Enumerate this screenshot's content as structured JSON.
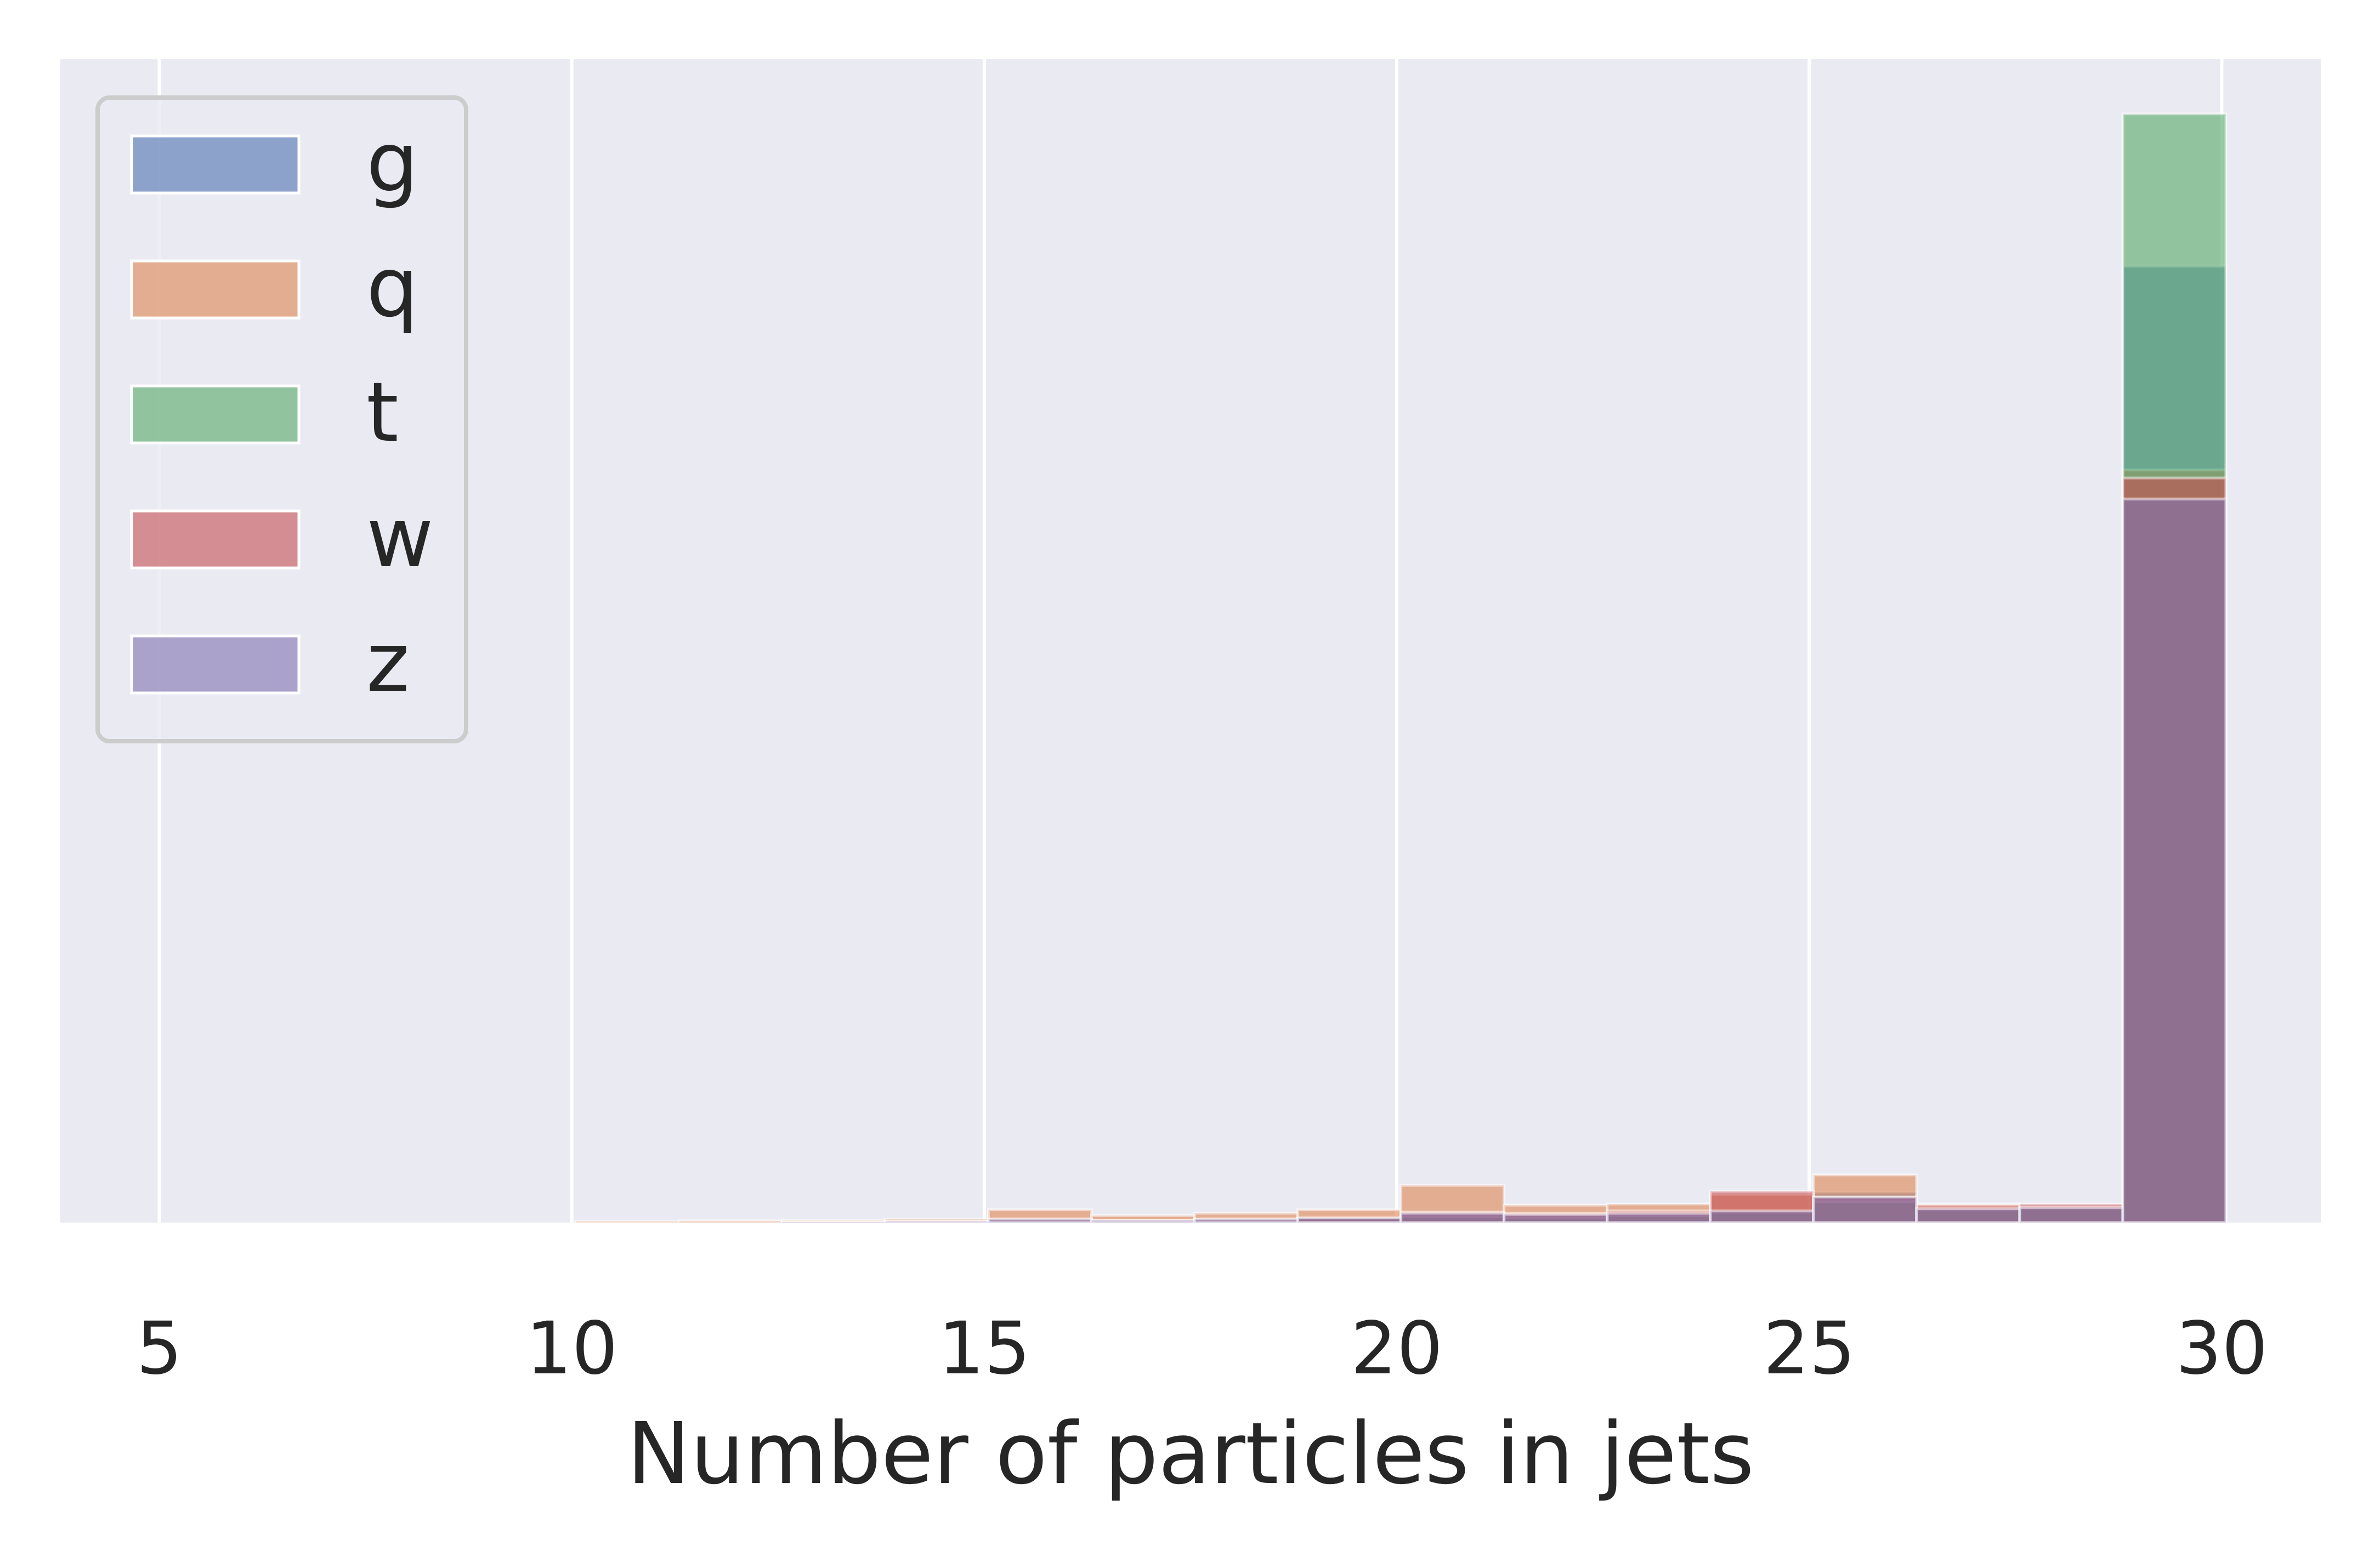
{
  "chart_data": {
    "type": "bar",
    "title": "",
    "xlabel": "Number of particles in jets",
    "ylabel": "",
    "xlim": [
      3.8,
      31.2
    ],
    "ylim": [
      0,
      1.0
    ],
    "xticks": [
      5,
      10,
      15,
      20,
      25,
      30
    ],
    "xtick_labels": [
      "5",
      "10",
      "15",
      "20",
      "25",
      "30"
    ],
    "show_y_ticks": false,
    "grid": "vertical",
    "legend": "top-left",
    "bins": [
      [
        3.8,
        5.05
      ],
      [
        5.05,
        6.3
      ],
      [
        6.3,
        7.55
      ],
      [
        7.55,
        8.8
      ],
      [
        8.8,
        10.05
      ],
      [
        10.05,
        11.3
      ],
      [
        11.3,
        12.55
      ],
      [
        12.55,
        13.8
      ],
      [
        13.8,
        15.05
      ],
      [
        15.05,
        16.3
      ],
      [
        16.3,
        17.55
      ],
      [
        17.55,
        18.8
      ],
      [
        18.8,
        20.05
      ],
      [
        20.05,
        21.3
      ],
      [
        21.3,
        22.55
      ],
      [
        22.55,
        23.8
      ],
      [
        23.8,
        25.05
      ],
      [
        25.05,
        26.3
      ],
      [
        26.3,
        27.55
      ],
      [
        27.55,
        28.8
      ],
      [
        28.8,
        30.05
      ]
    ],
    "series": [
      {
        "name": "g",
        "color": "#4c72b0",
        "values": [
          0,
          0,
          0,
          0,
          0,
          0,
          0.0004,
          0.0005,
          0.0012,
          0.004,
          0.002,
          0.004,
          0.005,
          0.009,
          0.006,
          0.007,
          0.011,
          0.026,
          0.012,
          0.013,
          0.822
        ]
      },
      {
        "name": "q",
        "color": "#dd8452",
        "values": [
          0,
          0,
          0,
          0,
          0,
          0.001,
          0.0015,
          0.002,
          0.003,
          0.011,
          0.006,
          0.008,
          0.011,
          0.032,
          0.015,
          0.016,
          0.024,
          0.041,
          0.016,
          0.014,
          0.647
        ]
      },
      {
        "name": "t",
        "color": "#55a868",
        "values": [
          0,
          0,
          0,
          0,
          0,
          0,
          0,
          0,
          0.0005,
          0.002,
          0.001,
          0.002,
          0.003,
          0.005,
          0.004,
          0.006,
          0.009,
          0.018,
          0.011,
          0.012,
          0.953
        ]
      },
      {
        "name": "w",
        "color": "#c44e52",
        "values": [
          0,
          0,
          0,
          0,
          0,
          0,
          0,
          0.0005,
          0.001,
          0.003,
          0.002,
          0.003,
          0.004,
          0.009,
          0.008,
          0.01,
          0.027,
          0.022,
          0.015,
          0.016,
          0.64
        ]
      },
      {
        "name": "z",
        "color": "#8172b2",
        "values": [
          0,
          0,
          0,
          0,
          0,
          0,
          0,
          0.0005,
          0.001,
          0.003,
          0.002,
          0.003,
          0.004,
          0.008,
          0.007,
          0.008,
          0.01,
          0.022,
          0.012,
          0.013,
          0.622
        ]
      }
    ],
    "colors": {
      "plot_background": "#eaeaf2",
      "grid": "#ffffff",
      "legend_frame": "#cccccc"
    }
  }
}
